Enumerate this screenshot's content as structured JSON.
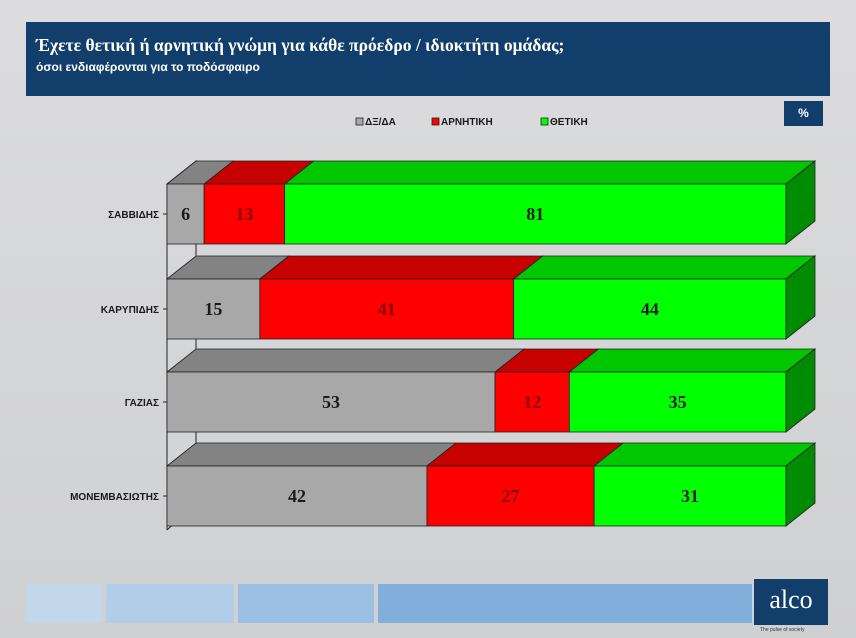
{
  "header": {
    "title": "Έχετε θετική ή αρνητική γνώμη για κάθε πρόεδρο / ιδιοκτήτη ομάδας;",
    "subtitle": "όσοι ενδιαφέρονται για το ποδόσφαιρο"
  },
  "unit_badge": "%",
  "logo": {
    "text": "alco",
    "tagline": "The pulse of society"
  },
  "colors": {
    "background": "#d4d4d6",
    "header": "#123e6b",
    "ds_da": "#a8a8a8",
    "negative": "#ff0000",
    "positive": "#00ff00",
    "positive_side": "#009900",
    "positive_top": "#00c800",
    "label_dark": "#1a1a1a",
    "label_red": "#8b0000"
  },
  "chart_data": {
    "type": "bar",
    "orientation": "horizontal",
    "stacked": true,
    "three_d": true,
    "categories": [
      "ΣΑΒΒΙΔΗΣ",
      "ΚΑΡΥΠΙΔΗΣ",
      "ΓΑΖΙΑΣ",
      "ΜΟΝΕΜΒΑΣΙΩΤΗΣ"
    ],
    "series": [
      {
        "name": "ΔΞ/ΔΑ",
        "color": "#a8a8a8",
        "values": [
          6,
          15,
          53,
          42
        ]
      },
      {
        "name": "ΑΡΝΗΤΙΚΗ",
        "color": "#ff0000",
        "values": [
          13,
          41,
          12,
          27
        ]
      },
      {
        "name": "ΘΕΤΙΚΗ",
        "color": "#00ff00",
        "values": [
          81,
          44,
          35,
          31
        ]
      }
    ],
    "xlim": [
      0,
      100
    ],
    "legend_position": "top-center",
    "grid": false
  }
}
